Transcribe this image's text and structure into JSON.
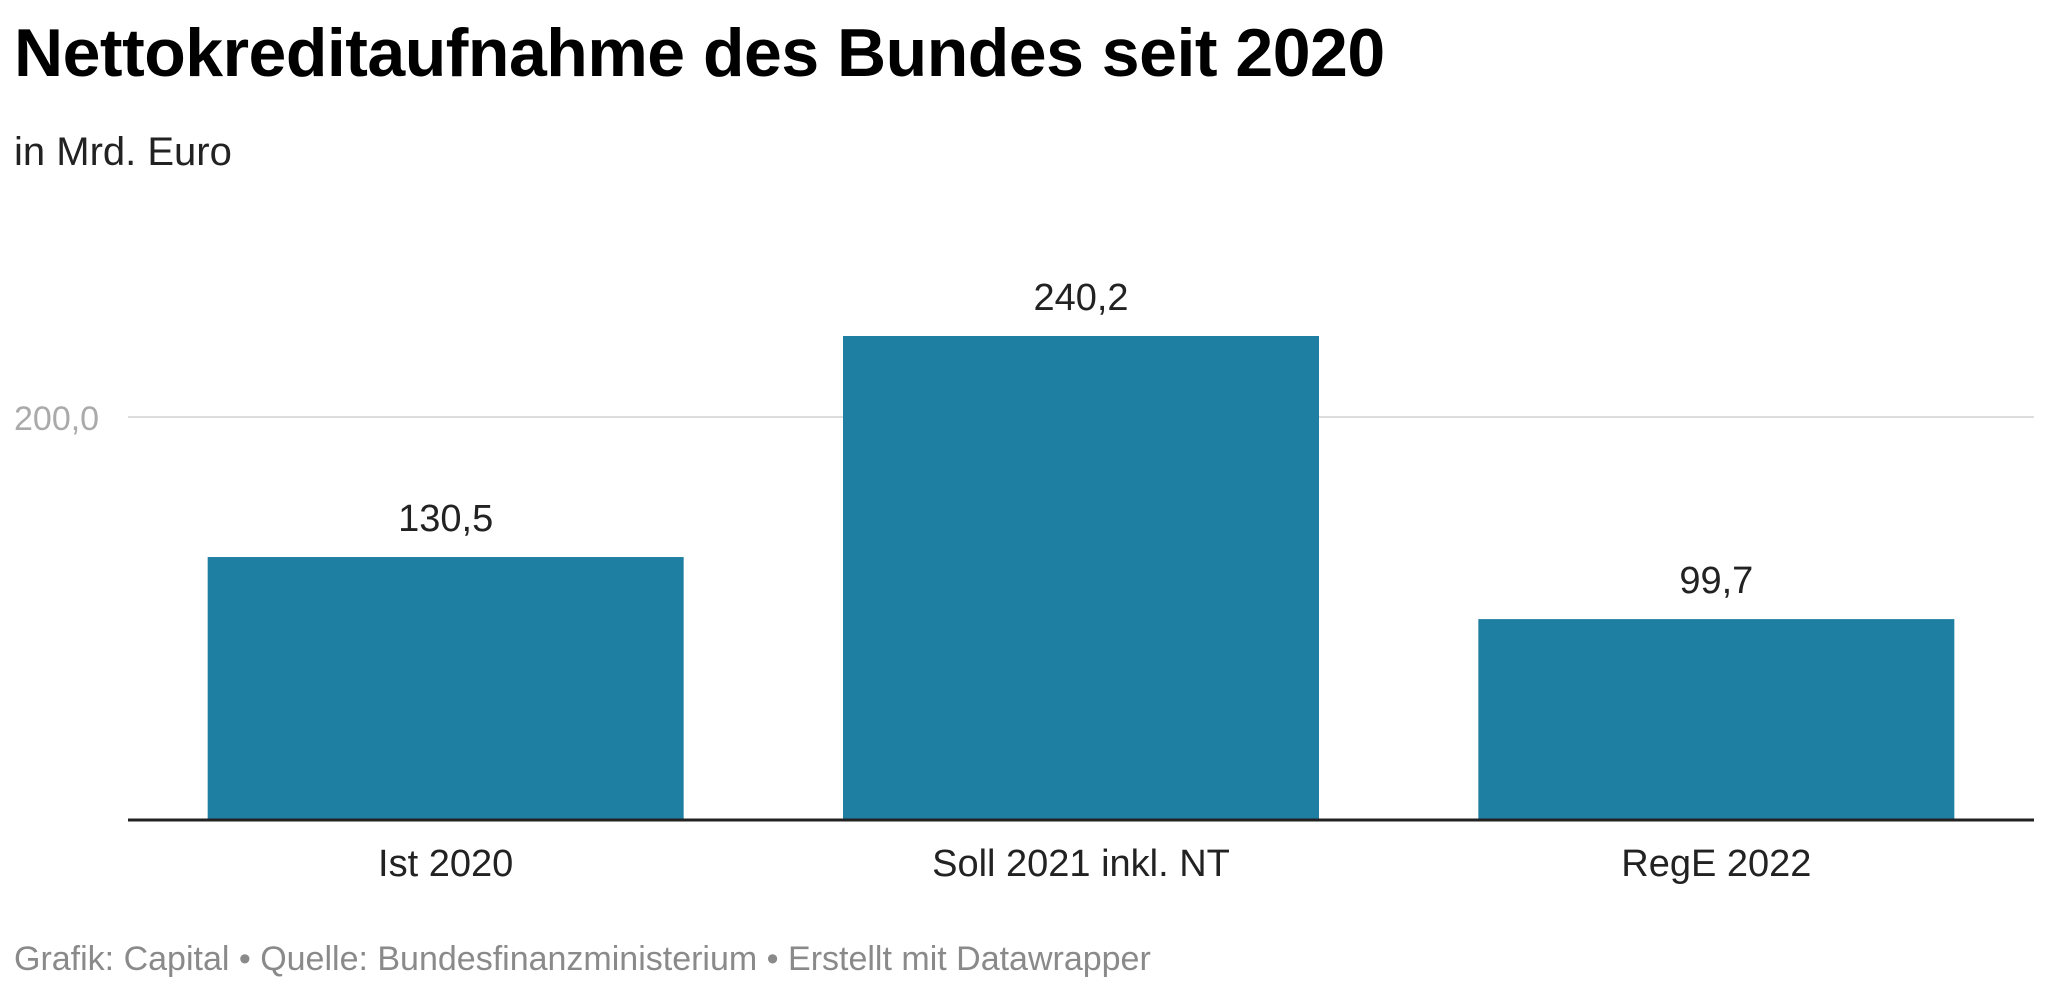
{
  "title": "Nettokreditaufnahme des Bundes seit 2020",
  "subtitle": "in Mrd. Euro",
  "footer": "Grafik: Capital • Quelle: Bundesfinanzministerium • Erstellt mit Datawrapper",
  "colors": {
    "bar": "#1f7fa3",
    "grid": "#dddddd",
    "axis": "#222222",
    "tick_label": "#aaaaaa",
    "value_label": "#222222"
  },
  "chart_data": {
    "type": "bar",
    "categories": [
      "Ist 2020",
      "Soll 2021 inkl. NT",
      "RegE 2022"
    ],
    "values": [
      130.5,
      240.2,
      99.7
    ],
    "value_labels": [
      "130,5",
      "240,2",
      "99,7"
    ],
    "y_ticks": [
      200
    ],
    "y_tick_labels": [
      "200,0"
    ],
    "ylim": [
      0,
      240.2
    ],
    "grid": true,
    "legend": "none"
  }
}
